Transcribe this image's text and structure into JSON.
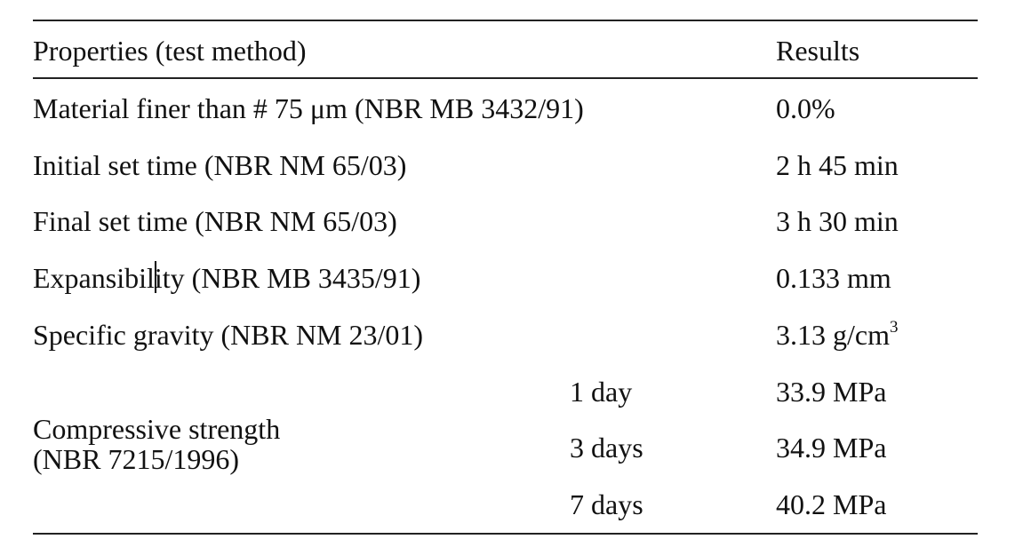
{
  "table": {
    "header": {
      "property": "Properties (test method)",
      "result": "Results"
    },
    "rows": [
      {
        "property": "Material finer than # 75 μm (NBR MB 3432/91)",
        "result": "0.0%"
      },
      {
        "property": "Initial set time (NBR NM 65/03)",
        "result": "2 h 45 min"
      },
      {
        "property": "Final set time (NBR NM 65/03)",
        "result": "3 h 30 min"
      },
      {
        "property": "Expansibility (NBR MB 3435/91)",
        "result": "0.133 mm"
      },
      {
        "property": "Specific gravity (NBR NM 23/01)",
        "result": "3.13 g/cm",
        "result_superscript": "3"
      }
    ],
    "compressive": {
      "label_line1": "Compressive strength",
      "label_line2": "(NBR 7215/1996)",
      "ages": [
        {
          "age": "1 day",
          "result": "33.9 MPa"
        },
        {
          "age": "3 days",
          "result": "34.9 MPa"
        },
        {
          "age": "7 days",
          "result": "40.2 MPa"
        }
      ]
    }
  }
}
